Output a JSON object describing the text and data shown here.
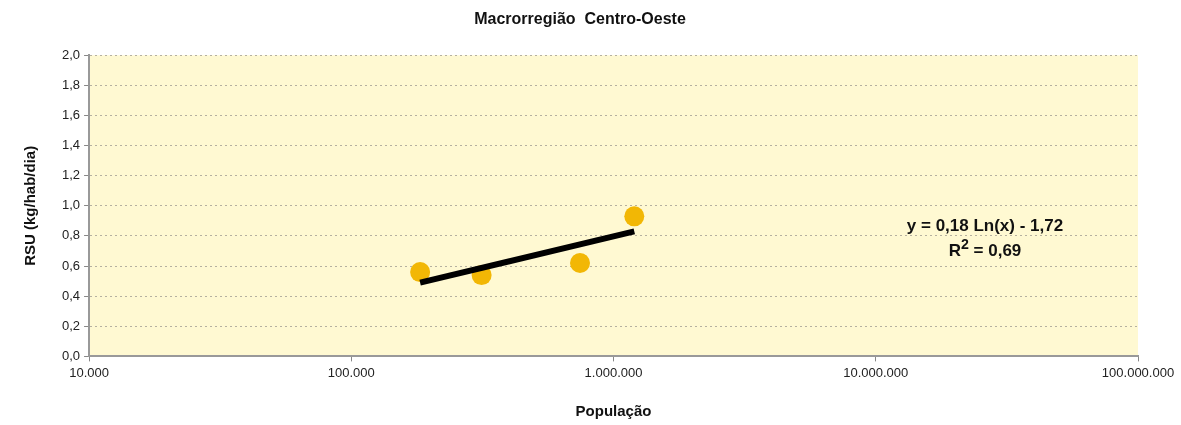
{
  "chart_data": {
    "type": "scatter",
    "title": "Macrorregião  Centro-Oeste",
    "xlabel": "População",
    "ylabel": "RSU (kg/hab/dia)",
    "annotations": [
      "y = 0,18 Ln(x) - 1,72",
      "R$^{2}$ = 0,69"
    ],
    "series": [
      {
        "color": "#f2b705",
        "marker": "circle",
        "x": [
          183000,
          314000,
          745000,
          1200000
        ],
        "values": [
          0.56,
          0.54,
          0.62,
          0.93
        ]
      },
      {
        "type": "line",
        "color": "#000000",
        "marker": "none",
        "x": [
          183000,
          1200000
        ],
        "values": [
          0.49,
          0.83
        ]
      }
    ],
    "log": "x",
    "xlim": [
      10000,
      100000000
    ],
    "xticks": [
      {
        "value": 10000,
        "label": "10.000"
      },
      {
        "value": 100000,
        "label": "100.000"
      },
      {
        "value": 1000000,
        "label": "1.000.000"
      },
      {
        "value": 10000000,
        "label": "10.000.000"
      },
      {
        "value": 100000000,
        "label": "100.000.000"
      }
    ],
    "ylim": [
      0,
      2
    ],
    "yticks": [
      {
        "value": 0,
        "label": "0,0"
      },
      {
        "value": 0.2,
        "label": "0,2"
      },
      {
        "value": 0.4,
        "label": "0,4"
      },
      {
        "value": 0.6,
        "label": "0,6"
      },
      {
        "value": 0.8,
        "label": "0,8"
      },
      {
        "value": 1,
        "label": "1,0"
      },
      {
        "value": 1.2,
        "label": "1,2"
      },
      {
        "value": 1.4,
        "label": "1,4"
      },
      {
        "value": 1.6,
        "label": "1,6"
      },
      {
        "value": 1.8,
        "label": "1,8"
      },
      {
        "value": 2,
        "label": "2,0"
      }
    ],
    "grid": "y",
    "legend": false
  }
}
